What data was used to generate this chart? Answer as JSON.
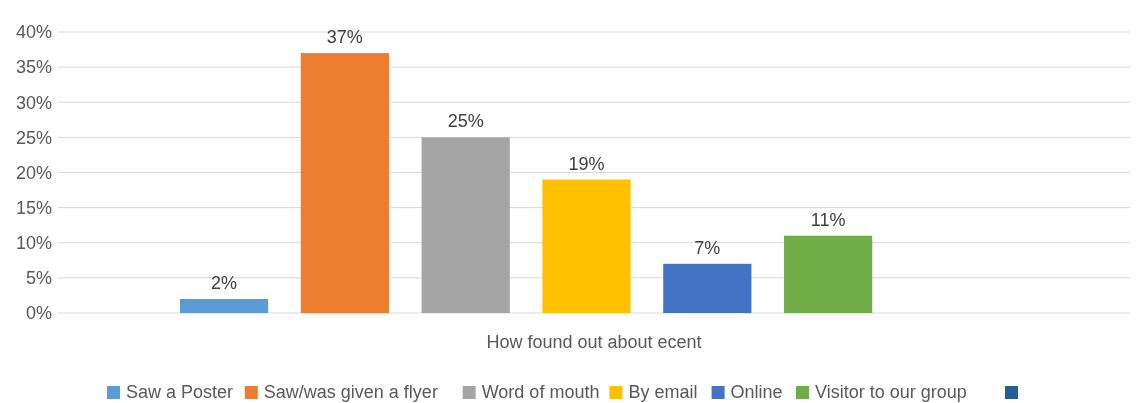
{
  "chart_data": {
    "type": "bar",
    "xlabel": "How found out about ecent",
    "categories": [
      null
    ],
    "series": [
      {
        "name": "Saw a Poster",
        "color": "#5b9bd5",
        "values": [
          2
        ],
        "value_labels": [
          "2%"
        ]
      },
      {
        "name": "Saw/was given a flyer",
        "color": "#ed7d31",
        "values": [
          37
        ],
        "value_labels": [
          "37%"
        ]
      },
      {
        "name": "Word of mouth",
        "color": "#a5a5a5",
        "values": [
          25
        ],
        "value_labels": [
          "25%"
        ]
      },
      {
        "name": "By email",
        "color": "#ffc000",
        "values": [
          19
        ],
        "value_labels": [
          "19%"
        ]
      },
      {
        "name": "Online",
        "color": "#4472c4",
        "values": [
          7
        ],
        "value_labels": [
          "7%"
        ]
      },
      {
        "name": "Visitor to our group",
        "color": "#70ad47",
        "values": [
          11
        ],
        "value_labels": [
          "11%"
        ]
      },
      {
        "color": "#255e91",
        "values": [
          null
        ]
      }
    ],
    "ylim": [
      0,
      40
    ],
    "yticks": [
      {
        "value": 0,
        "label": "0%"
      },
      {
        "value": 5,
        "label": "5%"
      },
      {
        "value": 10,
        "label": "10%"
      },
      {
        "value": 15,
        "label": "15%"
      },
      {
        "value": 20,
        "label": "20%"
      },
      {
        "value": 25,
        "label": "25%"
      },
      {
        "value": 30,
        "label": "30%"
      },
      {
        "value": 35,
        "label": "35%"
      },
      {
        "value": 40,
        "label": "40%"
      }
    ],
    "grid": "y",
    "legend": "bottom"
  }
}
